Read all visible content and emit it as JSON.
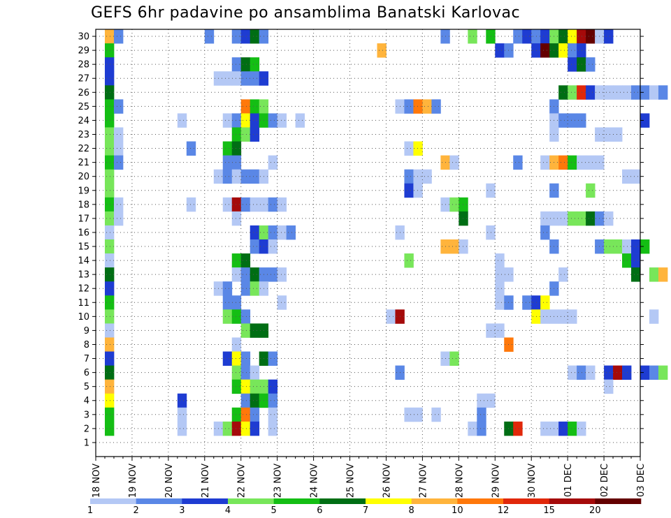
{
  "chart_data": {
    "type": "heatmap",
    "title": "GEFS 6hr padavine po ansamblima Banatski Karlovac",
    "xlabel": "",
    "ylabel": "",
    "y_ticks": [
      1,
      2,
      3,
      4,
      5,
      6,
      7,
      8,
      9,
      10,
      11,
      12,
      13,
      14,
      15,
      16,
      17,
      18,
      19,
      20,
      21,
      22,
      23,
      24,
      25,
      26,
      27,
      28,
      29,
      30
    ],
    "x_ticks": [
      "18 NOV",
      "19 NOV",
      "20 NOV",
      "21 NOV",
      "22 NOV",
      "23 NOV",
      "24 NOV",
      "25 NOV",
      "26 NOV",
      "27 NOV",
      "28 NOV",
      "29 NOV",
      "30 NOV",
      "01 DEC",
      "02 DEC",
      "03 DEC"
    ],
    "x_range": [
      "18 NOV 00z",
      "03 DEC 00z"
    ],
    "y_range": [
      0,
      30
    ],
    "grid": true,
    "colorbar": {
      "labels": [
        "1",
        "2",
        "3",
        "4",
        "5",
        "6",
        "7",
        "8",
        "10",
        "12",
        "15",
        "20"
      ],
      "colors": [
        "#b4c8f5",
        "#5a87e6",
        "#1e3cd2",
        "#78e65a",
        "#14be14",
        "#006e14",
        "#ffff00",
        "#ffb43c",
        "#ff780a",
        "#e1280a",
        "#a50a0a",
        "#640000"
      ]
    },
    "cells": [
      [
        30,
        1,
        7
      ],
      [
        30,
        2,
        1
      ],
      [
        30,
        12,
        1
      ],
      [
        30,
        15,
        1
      ],
      [
        30,
        16,
        2
      ],
      [
        30,
        17,
        5
      ],
      [
        30,
        18,
        1
      ],
      [
        30,
        38,
        1
      ],
      [
        30,
        41,
        3
      ],
      [
        30,
        43,
        4
      ],
      [
        30,
        46,
        1
      ],
      [
        30,
        47,
        2
      ],
      [
        30,
        48,
        1
      ],
      [
        30,
        49,
        2
      ],
      [
        30,
        50,
        3
      ],
      [
        30,
        51,
        5
      ],
      [
        30,
        52,
        6
      ],
      [
        30,
        53,
        10
      ],
      [
        30,
        54,
        11
      ],
      [
        30,
        55,
        0
      ],
      [
        30,
        56,
        2
      ],
      [
        29,
        1,
        4
      ],
      [
        29,
        31,
        7
      ],
      [
        29,
        44,
        2
      ],
      [
        29,
        45,
        1
      ],
      [
        29,
        48,
        2
      ],
      [
        29,
        49,
        11
      ],
      [
        29,
        50,
        5
      ],
      [
        29,
        51,
        6
      ],
      [
        29,
        52,
        1
      ],
      [
        29,
        53,
        2
      ],
      [
        28,
        1,
        2
      ],
      [
        28,
        15,
        1
      ],
      [
        28,
        16,
        5
      ],
      [
        28,
        17,
        4
      ],
      [
        28,
        52,
        2
      ],
      [
        28,
        53,
        5
      ],
      [
        28,
        54,
        1
      ],
      [
        27,
        1,
        2
      ],
      [
        27,
        13,
        0
      ],
      [
        27,
        14,
        0
      ],
      [
        27,
        15,
        0
      ],
      [
        27,
        16,
        1
      ],
      [
        27,
        17,
        1
      ],
      [
        27,
        18,
        2
      ],
      [
        26,
        1,
        5
      ],
      [
        26,
        51,
        5
      ],
      [
        26,
        52,
        3
      ],
      [
        26,
        53,
        9
      ],
      [
        26,
        54,
        2
      ],
      [
        26,
        55,
        0
      ],
      [
        26,
        56,
        0
      ],
      [
        26,
        57,
        0
      ],
      [
        26,
        58,
        0
      ],
      [
        26,
        59,
        1
      ],
      [
        26,
        60,
        1
      ],
      [
        26,
        61,
        0
      ],
      [
        26,
        62,
        1
      ],
      [
        25,
        1,
        4
      ],
      [
        25,
        2,
        1
      ],
      [
        25,
        16,
        8
      ],
      [
        25,
        17,
        4
      ],
      [
        25,
        18,
        3
      ],
      [
        25,
        33,
        0
      ],
      [
        25,
        34,
        1
      ],
      [
        25,
        35,
        8
      ],
      [
        25,
        36,
        7
      ],
      [
        25,
        37,
        1
      ],
      [
        25,
        50,
        1
      ],
      [
        24,
        1,
        4
      ],
      [
        24,
        9,
        0
      ],
      [
        24,
        14,
        0
      ],
      [
        24,
        15,
        1
      ],
      [
        24,
        16,
        6
      ],
      [
        24,
        17,
        2
      ],
      [
        24,
        18,
        4
      ],
      [
        24,
        19,
        1
      ],
      [
        24,
        20,
        0
      ],
      [
        24,
        22,
        0
      ],
      [
        24,
        50,
        0
      ],
      [
        24,
        51,
        1
      ],
      [
        24,
        52,
        1
      ],
      [
        24,
        53,
        1
      ],
      [
        24,
        60,
        2
      ],
      [
        23,
        1,
        3
      ],
      [
        23,
        2,
        0
      ],
      [
        23,
        15,
        4
      ],
      [
        23,
        16,
        3
      ],
      [
        23,
        17,
        2
      ],
      [
        23,
        50,
        0
      ],
      [
        23,
        55,
        0
      ],
      [
        23,
        56,
        0
      ],
      [
        23,
        57,
        0
      ],
      [
        22,
        1,
        3
      ],
      [
        22,
        2,
        0
      ],
      [
        22,
        10,
        1
      ],
      [
        22,
        14,
        4
      ],
      [
        22,
        15,
        5
      ],
      [
        22,
        34,
        0
      ],
      [
        22,
        35,
        6
      ],
      [
        21,
        1,
        4
      ],
      [
        21,
        2,
        1
      ],
      [
        21,
        14,
        1
      ],
      [
        21,
        15,
        1
      ],
      [
        21,
        19,
        0
      ],
      [
        21,
        38,
        7
      ],
      [
        21,
        39,
        0
      ],
      [
        21,
        46,
        1
      ],
      [
        21,
        49,
        0
      ],
      [
        21,
        50,
        7
      ],
      [
        21,
        51,
        8
      ],
      [
        21,
        52,
        4
      ],
      [
        21,
        53,
        0
      ],
      [
        21,
        54,
        0
      ],
      [
        21,
        55,
        0
      ],
      [
        20,
        1,
        3
      ],
      [
        20,
        13,
        0
      ],
      [
        20,
        14,
        1
      ],
      [
        20,
        15,
        0
      ],
      [
        20,
        16,
        1
      ],
      [
        20,
        17,
        1
      ],
      [
        20,
        18,
        0
      ],
      [
        20,
        34,
        1
      ],
      [
        20,
        35,
        0
      ],
      [
        20,
        36,
        0
      ],
      [
        20,
        58,
        0
      ],
      [
        20,
        59,
        0
      ],
      [
        19,
        1,
        3
      ],
      [
        19,
        34,
        2
      ],
      [
        19,
        35,
        0
      ],
      [
        19,
        43,
        0
      ],
      [
        19,
        50,
        1
      ],
      [
        19,
        54,
        3
      ],
      [
        18,
        1,
        4
      ],
      [
        18,
        2,
        0
      ],
      [
        18,
        10,
        0
      ],
      [
        18,
        14,
        0
      ],
      [
        18,
        15,
        10
      ],
      [
        18,
        16,
        1
      ],
      [
        18,
        17,
        0
      ],
      [
        18,
        18,
        0
      ],
      [
        18,
        19,
        1
      ],
      [
        18,
        20,
        0
      ],
      [
        18,
        38,
        0
      ],
      [
        18,
        39,
        3
      ],
      [
        18,
        40,
        4
      ],
      [
        17,
        1,
        3
      ],
      [
        17,
        2,
        0
      ],
      [
        17,
        15,
        0
      ],
      [
        17,
        40,
        5
      ],
      [
        17,
        49,
        0
      ],
      [
        17,
        50,
        0
      ],
      [
        17,
        51,
        0
      ],
      [
        17,
        52,
        3
      ],
      [
        17,
        53,
        3
      ],
      [
        17,
        54,
        5
      ],
      [
        17,
        55,
        1
      ],
      [
        17,
        56,
        0
      ],
      [
        16,
        1,
        0
      ],
      [
        16,
        17,
        2
      ],
      [
        16,
        18,
        3
      ],
      [
        16,
        19,
        1
      ],
      [
        16,
        20,
        0
      ],
      [
        16,
        21,
        1
      ],
      [
        16,
        33,
        0
      ],
      [
        16,
        43,
        0
      ],
      [
        16,
        49,
        1
      ],
      [
        15,
        1,
        3
      ],
      [
        15,
        17,
        1
      ],
      [
        15,
        18,
        2
      ],
      [
        15,
        19,
        0
      ],
      [
        15,
        38,
        7
      ],
      [
        15,
        39,
        7
      ],
      [
        15,
        40,
        0
      ],
      [
        15,
        50,
        1
      ],
      [
        15,
        55,
        1
      ],
      [
        15,
        56,
        3
      ],
      [
        15,
        57,
        3
      ],
      [
        15,
        58,
        0
      ],
      [
        15,
        59,
        2
      ],
      [
        15,
        60,
        4
      ],
      [
        14,
        1,
        0
      ],
      [
        14,
        15,
        4
      ],
      [
        14,
        16,
        5
      ],
      [
        14,
        34,
        3
      ],
      [
        14,
        44,
        0
      ],
      [
        14,
        58,
        4
      ],
      [
        14,
        59,
        2
      ],
      [
        13,
        1,
        5
      ],
      [
        13,
        15,
        0
      ],
      [
        13,
        16,
        1
      ],
      [
        13,
        17,
        5
      ],
      [
        13,
        18,
        1
      ],
      [
        13,
        19,
        1
      ],
      [
        13,
        20,
        0
      ],
      [
        13,
        44,
        0
      ],
      [
        13,
        45,
        0
      ],
      [
        13,
        51,
        0
      ],
      [
        13,
        59,
        5
      ],
      [
        13,
        61,
        3
      ],
      [
        13,
        62,
        7
      ],
      [
        12,
        1,
        2
      ],
      [
        12,
        13,
        0
      ],
      [
        12,
        14,
        1
      ],
      [
        12,
        16,
        1
      ],
      [
        12,
        17,
        3
      ],
      [
        12,
        18,
        0
      ],
      [
        12,
        44,
        0
      ],
      [
        12,
        50,
        1
      ],
      [
        11,
        1,
        4
      ],
      [
        11,
        14,
        1
      ],
      [
        11,
        15,
        1
      ],
      [
        11,
        20,
        0
      ],
      [
        11,
        44,
        0
      ],
      [
        11,
        45,
        1
      ],
      [
        11,
        47,
        1
      ],
      [
        11,
        48,
        2
      ],
      [
        11,
        49,
        6
      ],
      [
        10,
        1,
        3
      ],
      [
        10,
        14,
        3
      ],
      [
        10,
        15,
        4
      ],
      [
        10,
        16,
        1
      ],
      [
        10,
        32,
        0
      ],
      [
        10,
        33,
        10
      ],
      [
        10,
        48,
        6
      ],
      [
        10,
        49,
        0
      ],
      [
        10,
        50,
        0
      ],
      [
        10,
        51,
        0
      ],
      [
        10,
        52,
        0
      ],
      [
        10,
        61,
        0
      ],
      [
        9,
        1,
        0
      ],
      [
        9,
        16,
        3
      ],
      [
        9,
        17,
        5
      ],
      [
        9,
        18,
        5
      ],
      [
        9,
        43,
        0
      ],
      [
        9,
        44,
        0
      ],
      [
        8,
        1,
        7
      ],
      [
        8,
        15,
        0
      ],
      [
        8,
        45,
        8
      ],
      [
        7,
        1,
        2
      ],
      [
        7,
        14,
        2
      ],
      [
        7,
        15,
        6
      ],
      [
        7,
        16,
        1
      ],
      [
        7,
        18,
        5
      ],
      [
        7,
        19,
        1
      ],
      [
        7,
        38,
        0
      ],
      [
        7,
        39,
        3
      ],
      [
        6,
        1,
        5
      ],
      [
        6,
        15,
        3
      ],
      [
        6,
        16,
        1
      ],
      [
        6,
        17,
        0
      ],
      [
        6,
        33,
        1
      ],
      [
        6,
        52,
        0
      ],
      [
        6,
        53,
        1
      ],
      [
        6,
        54,
        0
      ],
      [
        6,
        56,
        2
      ],
      [
        6,
        57,
        10
      ],
      [
        6,
        58,
        2
      ],
      [
        6,
        60,
        2
      ],
      [
        6,
        61,
        1
      ],
      [
        6,
        62,
        3
      ],
      [
        5,
        1,
        7
      ],
      [
        5,
        15,
        4
      ],
      [
        5,
        16,
        6
      ],
      [
        5,
        17,
        3
      ],
      [
        5,
        18,
        3
      ],
      [
        5,
        19,
        2
      ],
      [
        5,
        56,
        0
      ],
      [
        4,
        1,
        6
      ],
      [
        4,
        9,
        2
      ],
      [
        4,
        16,
        1
      ],
      [
        4,
        17,
        5
      ],
      [
        4,
        18,
        4
      ],
      [
        4,
        19,
        1
      ],
      [
        4,
        42,
        0
      ],
      [
        4,
        43,
        0
      ],
      [
        3,
        1,
        4
      ],
      [
        3,
        9,
        0
      ],
      [
        3,
        15,
        4
      ],
      [
        3,
        16,
        8
      ],
      [
        3,
        17,
        1
      ],
      [
        3,
        19,
        0
      ],
      [
        3,
        34,
        0
      ],
      [
        3,
        35,
        0
      ],
      [
        3,
        37,
        0
      ],
      [
        3,
        42,
        1
      ],
      [
        2,
        1,
        4
      ],
      [
        2,
        9,
        0
      ],
      [
        2,
        13,
        0
      ],
      [
        2,
        14,
        3
      ],
      [
        2,
        15,
        10
      ],
      [
        2,
        16,
        6
      ],
      [
        2,
        17,
        2
      ],
      [
        2,
        19,
        0
      ],
      [
        2,
        41,
        0
      ],
      [
        2,
        42,
        1
      ],
      [
        2,
        45,
        5
      ],
      [
        2,
        46,
        9
      ],
      [
        2,
        49,
        0
      ],
      [
        2,
        50,
        0
      ],
      [
        2,
        51,
        2
      ],
      [
        2,
        52,
        4
      ],
      [
        2,
        53,
        0
      ]
    ]
  }
}
